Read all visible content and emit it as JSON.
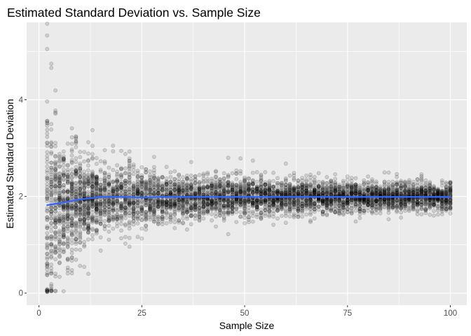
{
  "chart_data": {
    "type": "scatter",
    "title": "Estimated Standard Deviation vs. Sample Size",
    "xlabel": "Sample Size",
    "ylabel": "Estimated Standard Deviation",
    "xlim": [
      -3,
      104
    ],
    "ylim": [
      -0.25,
      5.6
    ],
    "x_ticks": [
      0,
      25,
      50,
      75,
      100
    ],
    "x_tick_labels": [
      "0",
      "25",
      "50",
      "75",
      "100"
    ],
    "y_ticks": [
      0,
      2,
      4
    ],
    "y_tick_labels": [
      "0",
      "2",
      "4"
    ],
    "grid": true,
    "legend": "none",
    "x_range": [
      2,
      100
    ],
    "true_sd": 2,
    "notable_points": [
      {
        "x": 2,
        "y": 5.33
      },
      {
        "x": 2,
        "y": 5.05
      },
      {
        "x": 3,
        "y": 4.66
      },
      {
        "x": 2,
        "y": 0.04
      },
      {
        "x": 3,
        "y": 0.05
      },
      {
        "x": 22,
        "y": 0.96
      },
      {
        "x": 46,
        "y": 1.22
      },
      {
        "x": 46,
        "y": 2.8
      }
    ],
    "series": [
      {
        "type": "smooth_line",
        "x": [
          2,
          5,
          10,
          15,
          20,
          25,
          30,
          40,
          50,
          60,
          70,
          80,
          90,
          100
        ],
        "y": [
          1.82,
          1.86,
          1.94,
          1.99,
          1.99,
          1.98,
          1.99,
          1.99,
          1.99,
          1.99,
          1.99,
          1.99,
          1.99,
          1.99
        ]
      }
    ],
    "colors": {
      "panel_background": "#ebebeb",
      "grid": "#ffffff",
      "points": "#000000",
      "smooth_line": "#3366ff"
    }
  }
}
